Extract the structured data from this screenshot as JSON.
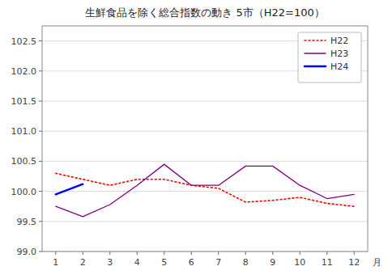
{
  "chart_data": {
    "type": "line",
    "title": "生鮮食品を除く総合指数の動き  5市（H22=100）",
    "x_label": "月",
    "xlim": [
      0.5,
      12.5
    ],
    "xticks": [
      1,
      2,
      3,
      4,
      5,
      6,
      7,
      8,
      9,
      10,
      11,
      12
    ],
    "ylim": [
      99.0,
      102.75
    ],
    "yticks": [
      {
        "value": 99.0,
        "label": "99.0"
      },
      99.5,
      {
        "value": 100.0,
        "label": "100.0"
      },
      100.5,
      {
        "value": 101.0,
        "label": "101.0"
      },
      101.5,
      {
        "value": 102.0,
        "label": "102.0"
      },
      102.5
    ],
    "grid": true,
    "legend": "upper right",
    "series": [
      {
        "name": "H22",
        "color": "#ff0000",
        "line_style": "dotted",
        "x": [
          1,
          2,
          3,
          4,
          5,
          6,
          7,
          8,
          9,
          10,
          11,
          12
        ],
        "values": [
          100.3,
          100.2,
          100.1,
          100.2,
          100.2,
          100.1,
          100.05,
          99.82,
          99.85,
          99.9,
          99.8,
          99.75
        ]
      },
      {
        "name": "H23",
        "color": "#800080",
        "line_style": "solid",
        "x": [
          1,
          2,
          3,
          4,
          5,
          6,
          7,
          8,
          9,
          10,
          11,
          12
        ],
        "values": [
          99.75,
          99.58,
          99.78,
          100.1,
          100.45,
          100.1,
          100.1,
          100.42,
          100.42,
          100.1,
          99.88,
          99.95
        ]
      },
      {
        "name": "H24",
        "color": "#0000ff",
        "line_style": "solid",
        "x": [
          1,
          2
        ],
        "values": [
          99.95,
          100.12
        ]
      }
    ]
  }
}
